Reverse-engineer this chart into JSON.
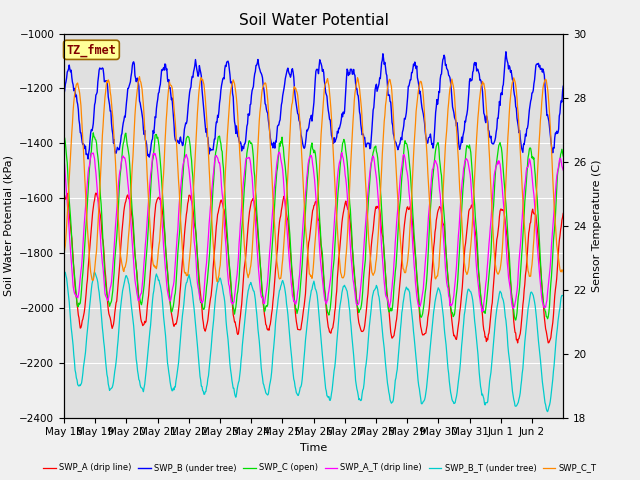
{
  "title": "Soil Water Potential",
  "xlabel": "Time",
  "ylabel_left": "Soil Water Potential (kPa)",
  "ylabel_right": "Sensor Temperature (C)",
  "ylim_left": [
    -2400,
    -1000
  ],
  "ylim_right": [
    18,
    30
  ],
  "yticks_left": [
    -2400,
    -2200,
    -2000,
    -1800,
    -1600,
    -1400,
    -1200,
    -1000
  ],
  "yticks_right": [
    18,
    20,
    22,
    24,
    26,
    28,
    30
  ],
  "fig_facecolor": "#f0f0f0",
  "plot_bg_color": "#e0e0e0",
  "series_colors": {
    "SWP_A": "#ff0000",
    "SWP_B": "#0000ff",
    "SWP_C": "#00dd00",
    "SWP_A_T": "#ff00ff",
    "SWP_B_T": "#00cccc",
    "SWP_C_T": "#ff8800"
  },
  "n_days": 16,
  "day_labels": [
    "May 18",
    "May 19",
    "May 20",
    "May 21",
    "May 22",
    "May 23",
    "May 24",
    "May 25",
    "May 26",
    "May 27",
    "May 28",
    "May 29",
    "May 30",
    "May 31",
    "Jun 1",
    "Jun 2"
  ]
}
